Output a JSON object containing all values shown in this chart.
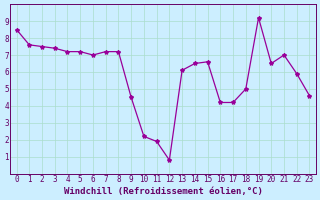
{
  "x": [
    0,
    1,
    2,
    3,
    4,
    5,
    6,
    7,
    8,
    9,
    10,
    11,
    12,
    13,
    14,
    15,
    16,
    17,
    18,
    19,
    20,
    21,
    22,
    23
  ],
  "y": [
    8.5,
    7.6,
    7.5,
    7.4,
    7.2,
    7.2,
    7.0,
    7.2,
    7.2,
    4.5,
    2.2,
    1.9,
    0.8,
    6.1,
    6.5,
    6.6,
    4.2,
    4.2,
    5.0,
    9.2,
    6.5,
    7.0,
    5.9,
    4.6
  ],
  "xlabel": "Windchill (Refroidissement éolien,°C)",
  "ylim": [
    0,
    10
  ],
  "xlim": [
    -0.5,
    23.5
  ],
  "yticks": [
    1,
    2,
    3,
    4,
    5,
    6,
    7,
    8,
    9
  ],
  "xticks": [
    0,
    1,
    2,
    3,
    4,
    5,
    6,
    7,
    8,
    9,
    10,
    11,
    12,
    13,
    14,
    15,
    16,
    17,
    18,
    19,
    20,
    21,
    22,
    23
  ],
  "line_color": "#990099",
  "marker": "*",
  "bg_color": "#cceeff",
  "grid_color": "#aaddcc",
  "axis_label_color": "#660066",
  "tick_label_color": "#660066"
}
